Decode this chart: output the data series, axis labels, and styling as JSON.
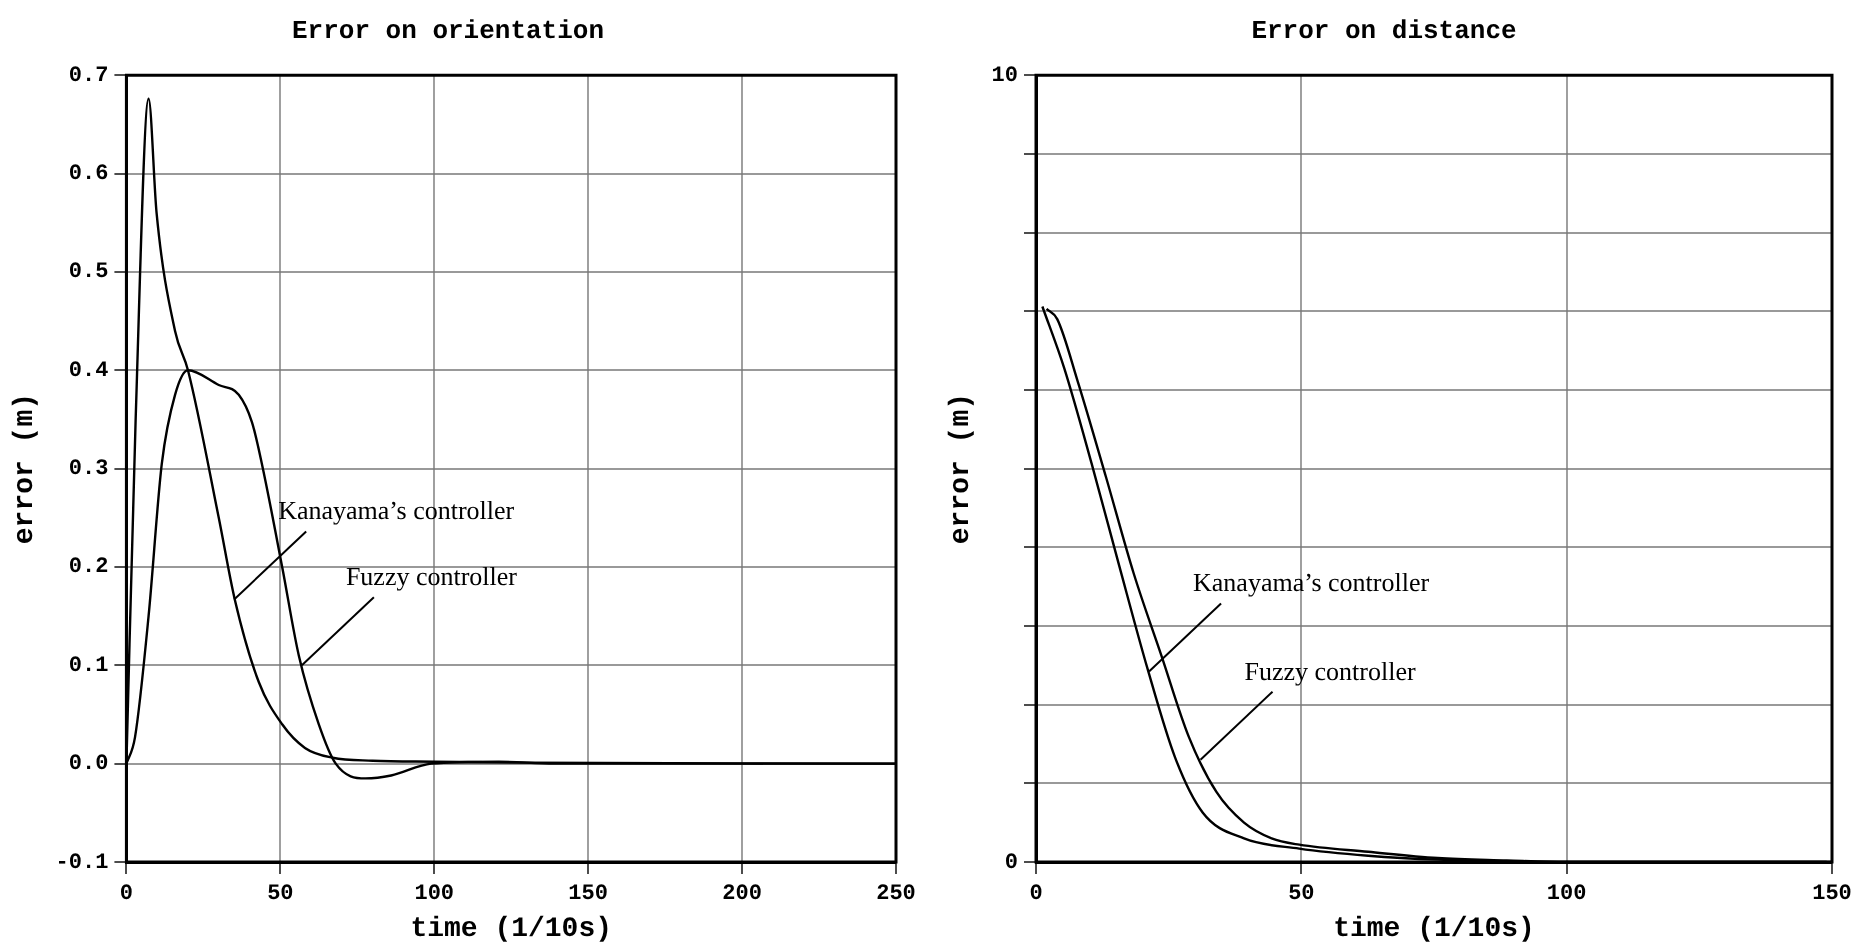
{
  "chart_data": [
    {
      "type": "line",
      "title": "Error on orientation",
      "xlabel": "time (1/10s)",
      "ylabel": "error (m)",
      "xlim": [
        0,
        250
      ],
      "xticks": [
        0,
        50,
        100,
        150,
        200,
        250
      ],
      "ylim": [
        -0.1,
        0.7
      ],
      "yticks": [
        -0.1,
        {
          "value": 0,
          "label": "0.0"
        },
        0.1,
        0.2,
        0.3,
        0.4,
        0.5,
        0.6,
        0.7
      ],
      "grid": true,
      "marker": "none",
      "line_style": "solid",
      "series": [
        {
          "color": "#000000",
          "x": [
            0,
            3,
            7.2,
            9.8,
            15.8,
            20,
            30,
            35.2,
            43,
            50.6,
            58,
            67,
            80,
            100,
            130,
            250
          ],
          "values": [
            0,
            0.35,
            0.676,
            0.56,
            0.44,
            0.4,
            0.25,
            0.167,
            0.083,
            0.04,
            0.016,
            0.006,
            0.003,
            0.002,
            0.001,
            0
          ]
        },
        {
          "color": "#000000",
          "x": [
            0,
            2.8,
            7.2,
            11.5,
            15.8,
            20,
            30,
            36.5,
            40.8,
            44,
            50.6,
            56,
            62.5,
            68,
            77.7,
            86,
            99,
            121,
            139,
            250
          ],
          "values": [
            0,
            0.027,
            0.15,
            0.305,
            0.375,
            0.4,
            0.385,
            0.375,
            0.347,
            0.305,
            0.2,
            0.11,
            0.04,
            0,
            -0.015,
            -0.012,
            0,
            0.002,
            0,
            0
          ]
        }
      ],
      "annotations": [
        {
          "text": "Kanayama’s controller",
          "x": 35,
          "y": 0.167
        },
        {
          "text": "Fuzzy controller",
          "x": 57,
          "y": 0.1
        }
      ]
    },
    {
      "type": "line",
      "title": "Error on distance",
      "xlabel": "time (1/10s)",
      "ylabel": "error (m)",
      "xlim": [
        0,
        150
      ],
      "xticks": [
        0,
        50,
        100,
        150
      ],
      "ylim": [
        0,
        10
      ],
      "yticks": [
        0,
        {
          "value": 1,
          "label": null
        },
        {
          "value": 2,
          "label": null
        },
        {
          "value": 3,
          "label": null
        },
        {
          "value": 4,
          "label": null
        },
        {
          "value": 5,
          "label": null
        },
        {
          "value": 6,
          "label": null
        },
        {
          "value": 7,
          "label": null
        },
        {
          "value": 8,
          "label": null
        },
        {
          "value": 9,
          "label": null
        },
        10
      ],
      "grid": true,
      "marker": "none",
      "line_style": "solid",
      "series": [
        {
          "color": "#000000",
          "x": [
            1.2,
            5.3,
            10.5,
            15.7,
            21,
            26.2,
            31.4,
            39.2,
            49.6,
            62.6,
            75.7,
            100,
            150
          ],
          "values": [
            7.06,
            6.28,
            5.06,
            3.76,
            2.46,
            1.33,
            0.63,
            0.3,
            0.17,
            0.08,
            0.03,
            0,
            0
          ]
        },
        {
          "color": "#000000",
          "x": [
            2,
            4,
            7.9,
            13.2,
            18.4,
            23.6,
            28.8,
            34,
            39.2,
            44.4,
            49.6,
            62.6,
            75.7,
            88.7,
            100,
            149
          ],
          "values": [
            7.03,
            6.9,
            6.1,
            4.89,
            3.67,
            2.63,
            1.59,
            0.89,
            0.5,
            0.3,
            0.22,
            0.13,
            0.05,
            0.02,
            0,
            0
          ]
        }
      ],
      "annotations": [
        {
          "text": "Kanayama’s controller",
          "x": 21.3,
          "y": 2.42
        },
        {
          "text": "Fuzzy controller",
          "x": 31,
          "y": 1.3
        }
      ]
    }
  ]
}
